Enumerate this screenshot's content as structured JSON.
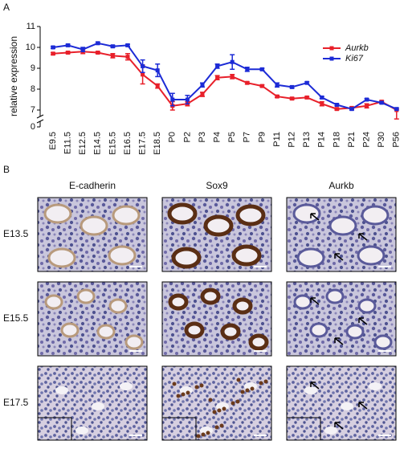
{
  "panel_labels": [
    "A",
    "B"
  ],
  "chart_data": {
    "type": "line",
    "y_label": "relative expression",
    "categories": [
      "E9.5",
      "E11.5",
      "E12.5",
      "E14.5",
      "E15.5",
      "E16.5",
      "E17.5",
      "E18.5",
      "P0",
      "P2",
      "P3",
      "P4",
      "P5",
      "P7",
      "P9",
      "P11",
      "P12",
      "P13",
      "P14",
      "P18",
      "P21",
      "P24",
      "P30",
      "P56"
    ],
    "series": [
      {
        "name": "Aurkb",
        "color": "#e8202a",
        "values": [
          9.7,
          9.75,
          9.8,
          9.75,
          9.6,
          9.55,
          8.7,
          8.15,
          7.2,
          7.3,
          7.75,
          8.55,
          8.6,
          8.3,
          8.15,
          7.65,
          7.55,
          7.6,
          7.3,
          7.05,
          7.1,
          7.2,
          7.4,
          7.0
        ],
        "errors": [
          0.05,
          0.05,
          0.1,
          0.05,
          0.1,
          0.15,
          0.45,
          0.1,
          0.2,
          0.1,
          0.1,
          0.1,
          0.1,
          0.05,
          0.05,
          0.05,
          0.05,
          0.05,
          0.1,
          0.05,
          0.05,
          0.1,
          0.05,
          0.05
        ]
      },
      {
        "name": "Ki67",
        "color": "#1c2bd6",
        "values": [
          10.0,
          10.1,
          9.9,
          10.2,
          10.05,
          10.1,
          9.1,
          8.9,
          7.5,
          7.5,
          8.2,
          9.1,
          9.3,
          8.95,
          8.95,
          8.2,
          8.1,
          8.3,
          7.6,
          7.25,
          7.05,
          7.5,
          7.35,
          7.05
        ],
        "errors": [
          0.05,
          0.05,
          0.1,
          0.05,
          0.05,
          0.05,
          0.3,
          0.3,
          0.3,
          0.2,
          0.1,
          0.1,
          0.35,
          0.1,
          0.05,
          0.1,
          0.05,
          0.05,
          0.05,
          0.05,
          0.05,
          0.05,
          0.05,
          0.05
        ]
      }
    ],
    "ylim": [
      0,
      11
    ],
    "yticks": [
      0,
      7,
      8,
      9,
      10,
      11
    ],
    "axis_break": true,
    "legend": "upper right"
  },
  "micrographs": {
    "columns": [
      "E-cadherin",
      "Sox9",
      "Aurkb"
    ],
    "rows": [
      "E13.5",
      "E15.5",
      "E17.5"
    ]
  }
}
